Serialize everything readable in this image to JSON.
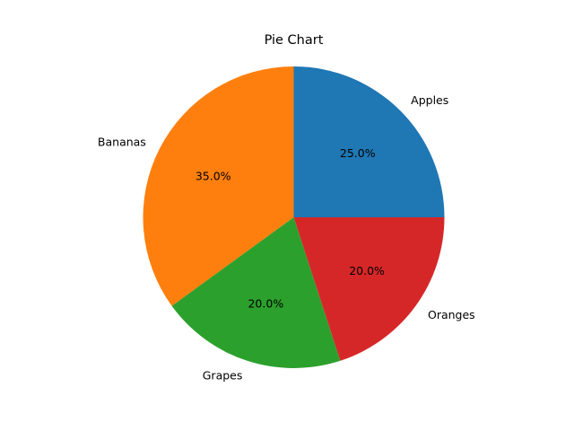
{
  "chart_data": {
    "type": "pie",
    "title": "Pie Chart",
    "start_angle_deg": 0,
    "direction": "counterclockwise",
    "percent_format": "{v}%",
    "slices": [
      {
        "label": "Apples",
        "value": 25.0,
        "percent_text": "25.0%",
        "color": "#1f77b4"
      },
      {
        "label": "Bananas",
        "value": 35.0,
        "percent_text": "35.0%",
        "color": "#ff7f0e"
      },
      {
        "label": "Grapes",
        "value": 20.0,
        "percent_text": "20.0%",
        "color": "#2ca02c"
      },
      {
        "label": "Oranges",
        "value": 20.0,
        "percent_text": "20.0%",
        "color": "#d62728"
      }
    ]
  }
}
